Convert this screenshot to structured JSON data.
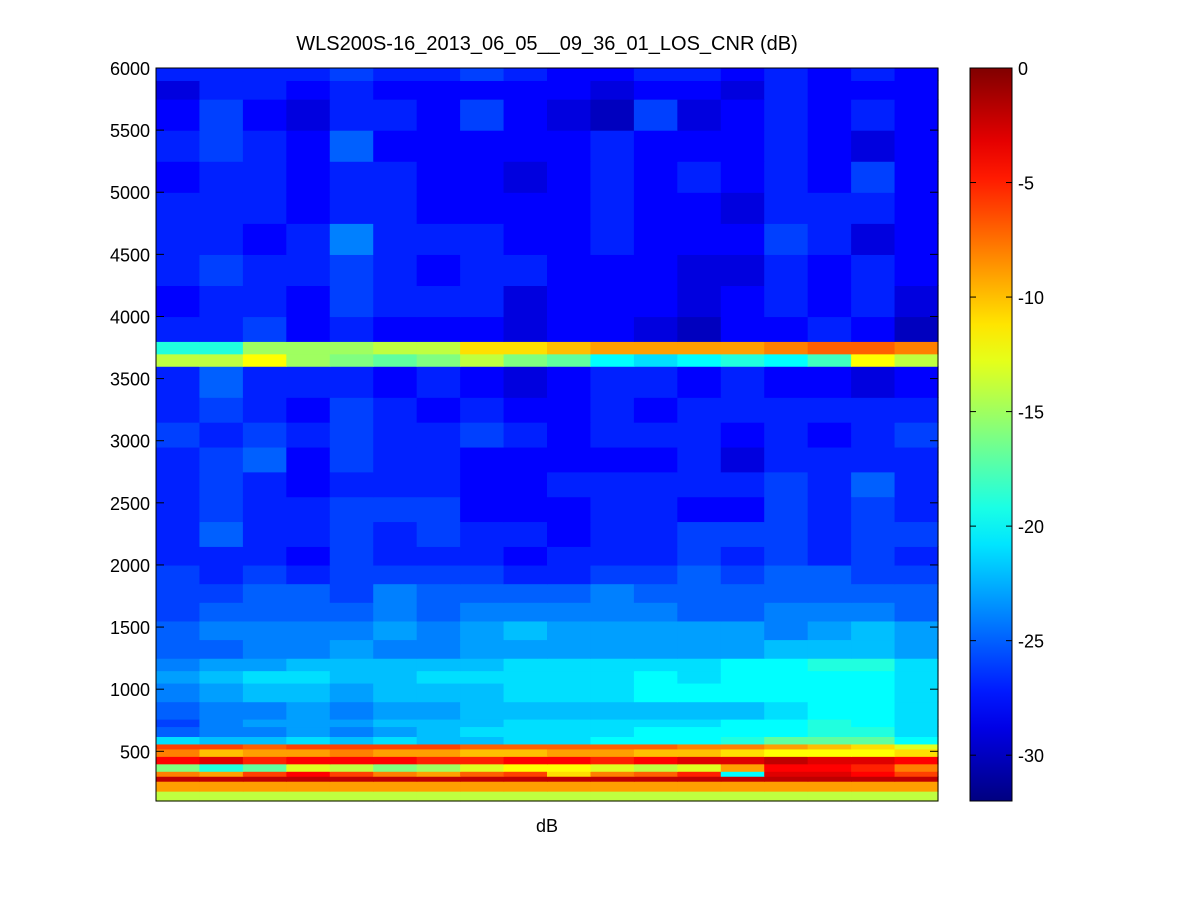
{
  "chart_data": {
    "type": "heatmap",
    "title": "WLS200S-16_2013_06_05__09_36_01_LOS_CNR (dB)",
    "xlabel": "dB",
    "ylabel": "",
    "ylim": [
      100,
      6000
    ],
    "yticks": [
      500,
      1000,
      1500,
      2000,
      2500,
      3000,
      3500,
      4000,
      4500,
      5000,
      5500,
      6000
    ],
    "n_columns": 18,
    "colorbar": {
      "colormap": "jet",
      "clim": [
        -32,
        0
      ],
      "ticks": [
        0,
        -5,
        -10,
        -15,
        -20,
        -25,
        -30
      ],
      "tick_labels": [
        "0",
        "-5",
        "-10",
        "-15",
        "-20",
        "-25",
        "-30"
      ]
    },
    "bands": [
      {
        "y_min": 100,
        "y_max": 180,
        "description": "ground return",
        "values": [
          -14,
          -14,
          -14,
          -14,
          -14,
          -14,
          -14,
          -14,
          -14,
          -14,
          -14,
          -14,
          -14,
          -14,
          -14,
          -14,
          -14,
          -14
        ]
      },
      {
        "y_min": 180,
        "y_max": 260,
        "values": [
          -9,
          -9,
          -9,
          -9,
          -9,
          -9,
          -9,
          -9,
          -9,
          -9,
          -9,
          -9,
          -9,
          -9,
          -9,
          -9,
          -9,
          -9
        ]
      },
      {
        "y_min": 260,
        "y_max": 300,
        "values": [
          -2,
          -2,
          -2,
          -2,
          -2,
          -2,
          -2,
          -2,
          -2,
          -2,
          -2,
          -2,
          -2,
          -2,
          -2,
          -2,
          -2,
          -2
        ]
      },
      {
        "y_min": 300,
        "y_max": 340,
        "values": [
          -8,
          -9,
          -6,
          -4,
          -6,
          -8,
          -9,
          -7,
          -6,
          -11,
          -8,
          -7,
          -5,
          -20,
          -3,
          -3,
          -4,
          -6
        ]
      },
      {
        "y_min": 340,
        "y_max": 400,
        "values": [
          -16,
          -19,
          -17,
          -13,
          -14,
          -16,
          -15,
          -13,
          -12,
          -12,
          -13,
          -14,
          -13,
          -9,
          -4,
          -4,
          -5,
          -8
        ]
      },
      {
        "y_min": 400,
        "y_max": 460,
        "values": [
          -4,
          -3,
          -5,
          -4,
          -4,
          -4,
          -5,
          -5,
          -4,
          -4,
          -5,
          -4,
          -3,
          -3,
          -2,
          -3,
          -3,
          -4
        ]
      },
      {
        "y_min": 460,
        "y_max": 520,
        "values": [
          -8,
          -10,
          -9,
          -9,
          -8,
          -9,
          -9,
          -10,
          -10,
          -9,
          -9,
          -10,
          -10,
          -11,
          -12,
          -12,
          -12,
          -11
        ]
      },
      {
        "y_min": 520,
        "y_max": 560,
        "values": [
          -6,
          -6,
          -7,
          -6,
          -6,
          -6,
          -6,
          -7,
          -7,
          -7,
          -7,
          -7,
          -8,
          -8,
          -9,
          -10,
          -11,
          -13
        ]
      },
      {
        "y_min": 560,
        "y_max": 620,
        "values": [
          -21,
          -22,
          -22,
          -21,
          -22,
          -21,
          -22,
          -22,
          -21,
          -21,
          -20,
          -20,
          -20,
          -19,
          -17,
          -17,
          -17,
          -20
        ]
      },
      {
        "y_min": 620,
        "y_max": 700,
        "values": [
          -25,
          -24,
          -24,
          -23,
          -24,
          -23,
          -22,
          -21,
          -21,
          -21,
          -21,
          -20,
          -20,
          -20,
          -20,
          -19,
          -19,
          -21
        ]
      },
      {
        "y_min": 700,
        "y_max": 760,
        "values": [
          -26,
          -24,
          -23,
          -23,
          -23,
          -22,
          -22,
          -22,
          -21,
          -21,
          -21,
          -21,
          -21,
          -20,
          -20,
          -19,
          -20,
          -21
        ]
      },
      {
        "y_min": 760,
        "y_max": 900,
        "values": [
          -25,
          -24,
          -24,
          -23,
          -24,
          -23,
          -23,
          -22,
          -22,
          -22,
          -22,
          -22,
          -22,
          -22,
          -21,
          -20,
          -20,
          -21
        ]
      },
      {
        "y_min": 900,
        "y_max": 1050,
        "values": [
          -24,
          -23,
          -22,
          -22,
          -23,
          -22,
          -22,
          -22,
          -21,
          -21,
          -21,
          -20,
          -20,
          -20,
          -20,
          -20,
          -20,
          -21
        ]
      },
      {
        "y_min": 1050,
        "y_max": 1150,
        "values": [
          -23,
          -22,
          -21,
          -21,
          -22,
          -22,
          -21,
          -21,
          -21,
          -21,
          -21,
          -20,
          -21,
          -20,
          -20,
          -20,
          -20,
          -21
        ]
      },
      {
        "y_min": 1150,
        "y_max": 1250,
        "values": [
          -24,
          -23,
          -23,
          -22,
          -22,
          -22,
          -22,
          -22,
          -21,
          -21,
          -21,
          -21,
          -21,
          -20,
          -20,
          -19,
          -19,
          -21
        ]
      },
      {
        "y_min": 1250,
        "y_max": 1400,
        "values": [
          -25,
          -25,
          -24,
          -24,
          -23,
          -24,
          -24,
          -23,
          -23,
          -23,
          -23,
          -23,
          -23,
          -23,
          -22,
          -22,
          -22,
          -23
        ]
      },
      {
        "y_min": 1400,
        "y_max": 1550,
        "values": [
          -25,
          -24,
          -24,
          -24,
          -24,
          -23,
          -24,
          -23,
          -22,
          -23,
          -23,
          -23,
          -23,
          -23,
          -24,
          -23,
          -22,
          -23
        ]
      },
      {
        "y_min": 1550,
        "y_max": 1700,
        "values": [
          -26,
          -25,
          -25,
          -25,
          -25,
          -24,
          -25,
          -24,
          -24,
          -24,
          -24,
          -24,
          -25,
          -25,
          -24,
          -24,
          -24,
          -25
        ]
      },
      {
        "y_min": 1700,
        "y_max": 1850,
        "values": [
          -26,
          -26,
          -25,
          -25,
          -26,
          -24,
          -25,
          -25,
          -25,
          -25,
          -24,
          -25,
          -25,
          -25,
          -25,
          -25,
          -25,
          -25
        ]
      },
      {
        "y_min": 1850,
        "y_max": 2000,
        "values": [
          -26,
          -27,
          -26,
          -27,
          -26,
          -26,
          -26,
          -26,
          -27,
          -27,
          -26,
          -26,
          -25,
          -26,
          -25,
          -25,
          -26,
          -26
        ]
      },
      {
        "y_min": 2000,
        "y_max": 2150,
        "values": [
          -27,
          -27,
          -27,
          -28,
          -26,
          -27,
          -27,
          -27,
          -28,
          -27,
          -27,
          -27,
          -26,
          -27,
          -26,
          -27,
          -26,
          -27
        ]
      },
      {
        "y_min": 2150,
        "y_max": 2350,
        "values": [
          -27,
          -25,
          -27,
          -27,
          -26,
          -27,
          -26,
          -27,
          -27,
          -28,
          -27,
          -27,
          -26,
          -26,
          -26,
          -27,
          -26,
          -26
        ]
      },
      {
        "y_min": 2350,
        "y_max": 2550,
        "values": [
          -27,
          -26,
          -27,
          -27,
          -26,
          -26,
          -26,
          -28,
          -28,
          -28,
          -27,
          -27,
          -28,
          -28,
          -26,
          -27,
          -26,
          -27
        ]
      },
      {
        "y_min": 2550,
        "y_max": 2750,
        "values": [
          -27,
          -26,
          -27,
          -28,
          -27,
          -27,
          -27,
          -28,
          -28,
          -27,
          -27,
          -27,
          -27,
          -27,
          -26,
          -27,
          -25,
          -27
        ]
      },
      {
        "y_min": 2750,
        "y_max": 2950,
        "values": [
          -27,
          -26,
          -25,
          -28,
          -26,
          -27,
          -27,
          -28,
          -28,
          -28,
          -28,
          -28,
          -27,
          -29,
          -27,
          -27,
          -27,
          -27
        ]
      },
      {
        "y_min": 2950,
        "y_max": 3150,
        "values": [
          -26,
          -27,
          -26,
          -27,
          -26,
          -27,
          -27,
          -26,
          -27,
          -28,
          -27,
          -27,
          -27,
          -28,
          -27,
          -28,
          -27,
          -26
        ]
      },
      {
        "y_min": 3150,
        "y_max": 3350,
        "values": [
          -27,
          -26,
          -27,
          -28,
          -26,
          -27,
          -28,
          -27,
          -28,
          -28,
          -27,
          -28,
          -27,
          -27,
          -27,
          -27,
          -27,
          -27
        ]
      },
      {
        "y_min": 3350,
        "y_max": 3600,
        "values": [
          -27,
          -25,
          -27,
          -27,
          -27,
          -28,
          -27,
          -28,
          -29,
          -28,
          -27,
          -27,
          -28,
          -27,
          -28,
          -28,
          -29,
          -28
        ]
      },
      {
        "y_min": 3600,
        "y_max": 3700,
        "values": [
          -14,
          -14,
          -12,
          -15,
          -16,
          -17,
          -16,
          -14,
          -16,
          -17,
          -20,
          -21,
          -20,
          -19,
          -20,
          -18,
          -12,
          -14
        ]
      },
      {
        "y_min": 3700,
        "y_max": 3800,
        "values": [
          -19,
          -19,
          -15,
          -15,
          -15,
          -14,
          -14,
          -11,
          -11,
          -10,
          -9,
          -9,
          -9,
          -9,
          -8,
          -7,
          -7,
          -8
        ]
      },
      {
        "y_min": 3800,
        "y_max": 4000,
        "values": [
          -27,
          -27,
          -26,
          -28,
          -27,
          -28,
          -28,
          -28,
          -29,
          -28,
          -28,
          -29,
          -30,
          -28,
          -28,
          -27,
          -28,
          -30
        ]
      },
      {
        "y_min": 4000,
        "y_max": 4250,
        "values": [
          -28,
          -27,
          -27,
          -28,
          -26,
          -27,
          -27,
          -27,
          -29,
          -28,
          -28,
          -28,
          -29,
          -28,
          -27,
          -28,
          -27,
          -29
        ]
      },
      {
        "y_min": 4250,
        "y_max": 4500,
        "values": [
          -27,
          -26,
          -27,
          -27,
          -26,
          -27,
          -28,
          -27,
          -27,
          -28,
          -28,
          -28,
          -29,
          -29,
          -27,
          -28,
          -27,
          -28
        ]
      },
      {
        "y_min": 4500,
        "y_max": 4750,
        "values": [
          -27,
          -27,
          -28,
          -27,
          -24,
          -27,
          -27,
          -27,
          -28,
          -28,
          -27,
          -28,
          -28,
          -28,
          -26,
          -27,
          -29,
          -28
        ]
      },
      {
        "y_min": 4750,
        "y_max": 5000,
        "values": [
          -27,
          -27,
          -27,
          -28,
          -27,
          -27,
          -28,
          -28,
          -28,
          -28,
          -27,
          -28,
          -28,
          -29,
          -27,
          -27,
          -27,
          -28
        ]
      },
      {
        "y_min": 5000,
        "y_max": 5250,
        "values": [
          -28,
          -27,
          -27,
          -28,
          -27,
          -27,
          -28,
          -28,
          -29,
          -28,
          -27,
          -28,
          -27,
          -28,
          -27,
          -28,
          -26,
          -28
        ]
      },
      {
        "y_min": 5250,
        "y_max": 5500,
        "values": [
          -27,
          -26,
          -27,
          -28,
          -25,
          -28,
          -28,
          -28,
          -28,
          -28,
          -27,
          -28,
          -28,
          -28,
          -27,
          -28,
          -29,
          -28
        ]
      },
      {
        "y_min": 5500,
        "y_max": 5750,
        "values": [
          -28,
          -26,
          -28,
          -29,
          -27,
          -27,
          -28,
          -26,
          -28,
          -29,
          -30,
          -26,
          -29,
          -28,
          -27,
          -28,
          -27,
          -28
        ]
      },
      {
        "y_min": 5750,
        "y_max": 5900,
        "values": [
          -29,
          -27,
          -27,
          -28,
          -27,
          -28,
          -28,
          -28,
          -28,
          -28,
          -29,
          -28,
          -28,
          -29,
          -27,
          -28,
          -28,
          -28
        ]
      },
      {
        "y_min": 5900,
        "y_max": 6000,
        "values": [
          -27,
          -27,
          -27,
          -27,
          -26,
          -27,
          -27,
          -26,
          -27,
          -28,
          -28,
          -27,
          -27,
          -28,
          -27,
          -28,
          -27,
          -28
        ]
      }
    ]
  }
}
